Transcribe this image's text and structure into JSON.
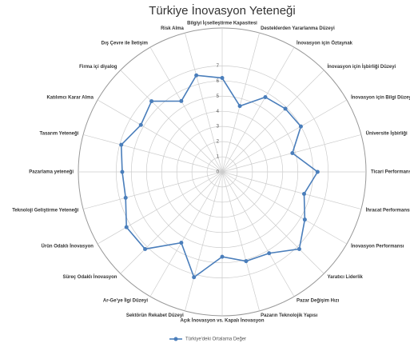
{
  "chart_data": {
    "type": "radar",
    "title": "Türkiye İnovasyon Yeteneği",
    "categories": [
      "Bilgiyi İçselleştirme Kapasitesi",
      "Desteklerden Yararlanma Düzeyi",
      "İnovasyon için Öztaynak",
      "İnovasyon için İşbirliği Düzeyi",
      "İnovasyon için Bilgi Düzeyi",
      "Üniversite İşbirliği",
      "Ticari Performans",
      "İhracat Performansı",
      "İnovasyon Performansı",
      "Yaratıcı Liderlik",
      "Pazar Değişim Hızı",
      "Pazarın Teknolojik Yapısı",
      "Açık İnovasyon vs. Kapalı İnovasyon",
      "Sektörün Rekabet Düzeyi",
      "Ar-Ge'ye İlgi Düzeyi",
      "Süreç Odaklı İnovasyon",
      "Ürün Odaklı İnovasyon",
      "Teknoloji Geliştirme Yeteneği",
      "Pazarlama yeteneği",
      "Tasarım Yeteneği",
      "Katılımcı Karar Alma",
      "Firma içi diyalog",
      "Dış Çevre ile İletişim",
      "Risk Alma"
    ],
    "series": [
      {
        "name": "Türkiye'deki Ortalama Değer",
        "color": "#4a7ebb",
        "values": [
          6.2,
          4.5,
          5.7,
          5.9,
          6.0,
          4.8,
          6.3,
          5.6,
          6.3,
          7.2,
          6.2,
          6.1,
          5.6,
          7.2,
          5.4,
          7.2,
          7.3,
          6.6,
          6.6,
          6.9,
          6.2,
          6.6,
          5.4,
          6.6
        ]
      }
    ],
    "ylim": [
      0,
      9.5
    ],
    "yticks": [
      0,
      1,
      2,
      3,
      4,
      5,
      6,
      7
    ],
    "grid": true,
    "legend": "bottom"
  }
}
